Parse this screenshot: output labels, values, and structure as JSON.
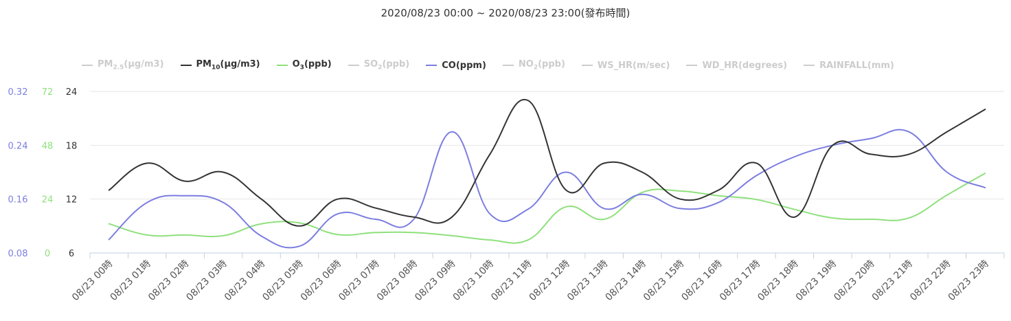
{
  "title": "2020/08/23 00:00 ~ 2020/08/23 23:00(發布時間)",
  "legend": [
    {
      "id": "pm25",
      "base": "PM",
      "sub": "2.5",
      "suffix": "(μg/m3)",
      "color": "#cccccc",
      "active": false
    },
    {
      "id": "pm10",
      "base": "PM",
      "sub": "10",
      "suffix": "(μg/m3)",
      "color": "#333333",
      "active": true
    },
    {
      "id": "o3",
      "base": "O",
      "sub": "3",
      "suffix": "(ppb)",
      "color": "#8ee07c",
      "active": true
    },
    {
      "id": "so2",
      "base": "SO",
      "sub": "2",
      "suffix": "(ppb)",
      "color": "#cccccc",
      "active": false
    },
    {
      "id": "co",
      "base": "CO",
      "sub": "",
      "suffix": "(ppm)",
      "color": "#7b7de0",
      "active": true
    },
    {
      "id": "no2",
      "base": "NO",
      "sub": "2",
      "suffix": "(ppb)",
      "color": "#cccccc",
      "active": false
    },
    {
      "id": "ws",
      "base": "WS_HR",
      "sub": "",
      "suffix": "(m/sec)",
      "color": "#cccccc",
      "active": false
    },
    {
      "id": "wd",
      "base": "WD_HR",
      "sub": "",
      "suffix": "(degrees)",
      "color": "#cccccc",
      "active": false
    },
    {
      "id": "rain",
      "base": "RAINFALL",
      "sub": "",
      "suffix": "(mm)",
      "color": "#cccccc",
      "active": false
    }
  ],
  "chart_data": {
    "type": "line",
    "title": "2020/08/23 00:00 ~ 2020/08/23 23:00(發布時間)",
    "categories": [
      "08/23 00時",
      "08/23 01時",
      "08/23 02時",
      "08/23 03時",
      "08/23 04時",
      "08/23 05時",
      "08/23 06時",
      "08/23 07時",
      "08/23 08時",
      "08/23 09時",
      "08/23 10時",
      "08/23 11時",
      "08/23 12時",
      "08/23 13時",
      "08/23 14時",
      "08/23 15時",
      "08/23 16時",
      "08/23 17時",
      "08/23 18時",
      "08/23 19時",
      "08/23 20時",
      "08/23 21時",
      "08/23 22時",
      "08/23 23時"
    ],
    "axes": {
      "co": {
        "ticks": [
          "0.08",
          "0.16",
          "0.24",
          "0.32"
        ],
        "min": 0.08,
        "max": 0.32,
        "color": "#7b7de0"
      },
      "o3": {
        "ticks": [
          "0",
          "24",
          "48",
          "72"
        ],
        "min": 0,
        "max": 72,
        "color": "#8ee07c"
      },
      "pm10": {
        "ticks": [
          "6",
          "12",
          "18",
          "24"
        ],
        "min": 6,
        "max": 24,
        "color": "#333333"
      }
    },
    "grid": true,
    "legend_position": "top",
    "series": [
      {
        "name": "PM10(μg/m3)",
        "axis": "pm10",
        "color": "#333333",
        "values": [
          13,
          16,
          14,
          15,
          12,
          9,
          12,
          11,
          10,
          10,
          17,
          23,
          13,
          16,
          15,
          12,
          13,
          16,
          10,
          18,
          17,
          17,
          19.5,
          22
        ]
      },
      {
        "name": "O3(ppb)",
        "axis": "o3",
        "color": "#8ee07c",
        "values": [
          13,
          8,
          8,
          7.7,
          13,
          13.4,
          8.2,
          9.1,
          9.1,
          7.7,
          5.8,
          5.8,
          20.6,
          15,
          27,
          27.6,
          25.5,
          23.8,
          19.4,
          15.6,
          15,
          15.6,
          25.8,
          35.5
        ]
      },
      {
        "name": "CO(ppm)",
        "axis": "co",
        "color": "#7b7de0",
        "values": [
          0.1,
          0.155,
          0.165,
          0.155,
          0.105,
          0.09,
          0.138,
          0.13,
          0.13,
          0.26,
          0.138,
          0.145,
          0.2,
          0.146,
          0.167,
          0.146,
          0.155,
          0.195,
          0.223,
          0.24,
          0.25,
          0.26,
          0.2,
          0.177
        ]
      }
    ]
  }
}
